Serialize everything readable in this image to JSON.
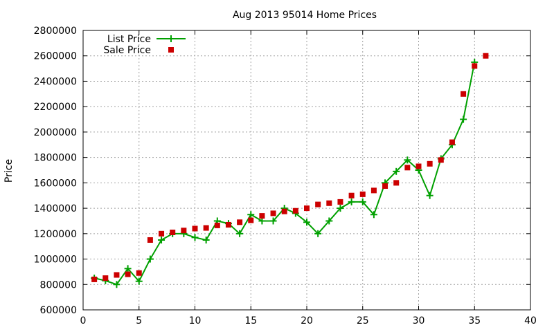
{
  "chart_data": {
    "type": "line",
    "title": "Aug 2013 95014 Home Prices",
    "xlabel": "",
    "ylabel": "Price",
    "xlim": [
      0,
      40
    ],
    "ylim": [
      600000,
      2800000
    ],
    "xticks": [
      0,
      5,
      10,
      15,
      20,
      25,
      30,
      35,
      40
    ],
    "yticks": [
      600000,
      800000,
      1000000,
      1200000,
      1400000,
      1600000,
      1800000,
      2000000,
      2200000,
      2400000,
      2600000,
      2800000
    ],
    "grid": true,
    "legend_position": "top-left",
    "series": [
      {
        "name": "List Price",
        "style": "line-plus",
        "color": "#00a000",
        "x": [
          1,
          2,
          3,
          4,
          5,
          6,
          7,
          8,
          9,
          10,
          11,
          12,
          13,
          14,
          15,
          16,
          17,
          18,
          19,
          20,
          21,
          22,
          23,
          24,
          25,
          26,
          27,
          28,
          29,
          30,
          31,
          32,
          33,
          34,
          35
        ],
        "y": [
          850000,
          830000,
          800000,
          925000,
          825000,
          1000000,
          1150000,
          1200000,
          1200000,
          1170000,
          1150000,
          1300000,
          1280000,
          1200000,
          1350000,
          1300000,
          1300000,
          1400000,
          1360000,
          1290000,
          1200000,
          1300000,
          1400000,
          1450000,
          1450000,
          1350000,
          1600000,
          1690000,
          1780000,
          1700000,
          1500000,
          1790000,
          1900000,
          2100000,
          2550000
        ]
      },
      {
        "name": "Sale Price",
        "style": "points-square",
        "color": "#cc0000",
        "x": [
          1,
          2,
          3,
          4,
          5,
          6,
          7,
          8,
          9,
          10,
          11,
          12,
          13,
          14,
          15,
          16,
          17,
          18,
          19,
          20,
          21,
          22,
          23,
          24,
          25,
          26,
          27,
          28,
          29,
          30,
          31,
          32,
          33,
          34,
          35,
          36
        ],
        "y": [
          840000,
          850000,
          875000,
          880000,
          890000,
          1150000,
          1200000,
          1210000,
          1225000,
          1240000,
          1245000,
          1265000,
          1270000,
          1290000,
          1305000,
          1340000,
          1360000,
          1375000,
          1380000,
          1400000,
          1430000,
          1440000,
          1450000,
          1500000,
          1510000,
          1540000,
          1575000,
          1600000,
          1720000,
          1730000,
          1750000,
          1780000,
          1920000,
          2300000,
          2520000,
          2600000
        ]
      }
    ]
  }
}
